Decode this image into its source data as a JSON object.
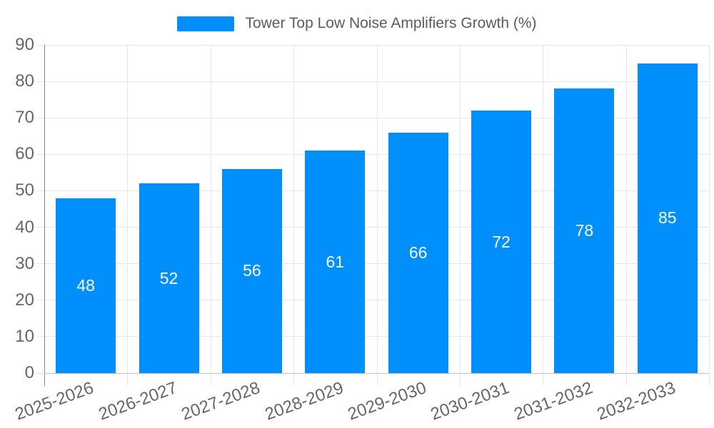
{
  "legend": {
    "swatch_color": "#008FFB"
  },
  "chart_data": {
    "type": "bar",
    "title": "Tower Top Low Noise Amplifiers Growth (%)",
    "categories": [
      "2025-2026",
      "2026-2027",
      "2027-2028",
      "2028-2029",
      "2029-2030",
      "2030-2031",
      "2031-2032",
      "2032-2033"
    ],
    "values": [
      48,
      52,
      56,
      61,
      66,
      72,
      78,
      85
    ],
    "value_labels": [
      "48",
      "52",
      "56",
      "61",
      "66",
      "72",
      "78",
      "85"
    ],
    "ytick_labels": [
      "0",
      "10",
      "20",
      "30",
      "40",
      "50",
      "60",
      "70",
      "80",
      "90"
    ],
    "ytick_values": [
      0,
      10,
      20,
      30,
      40,
      50,
      60,
      70,
      80,
      90
    ],
    "ylim": [
      0,
      90
    ],
    "xlabel": "",
    "ylabel": "",
    "grid": true,
    "legend_position": "top",
    "bar_color": "#008FFB",
    "value_label_color": "#ffffff",
    "axis_label_color": "#666666",
    "gridline_color": "#e7e7e7"
  }
}
